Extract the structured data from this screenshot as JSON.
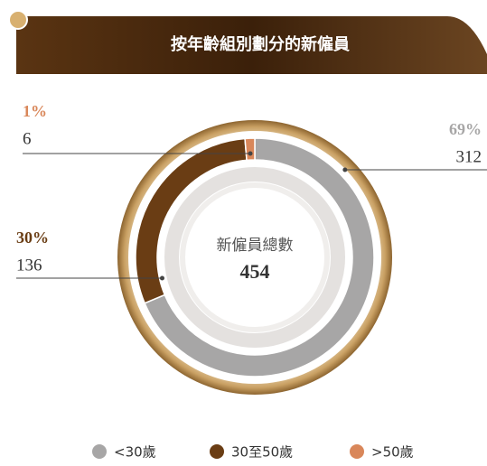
{
  "chart_data": {
    "type": "pie",
    "donut": true,
    "title": "按年齡組別劃分的新僱員",
    "center_label": "新僱員總數",
    "total": 454,
    "categories": [
      "<30歲",
      "30至50歲",
      ">50歲"
    ],
    "values": [
      312,
      136,
      6
    ],
    "shares": {
      "values": [
        69,
        30,
        1
      ],
      "value_labels": [
        "69%",
        "30%",
        "1%"
      ]
    },
    "colors": [
      "#a7a6a6",
      "#6a3d14",
      "#d9875a"
    ]
  }
}
